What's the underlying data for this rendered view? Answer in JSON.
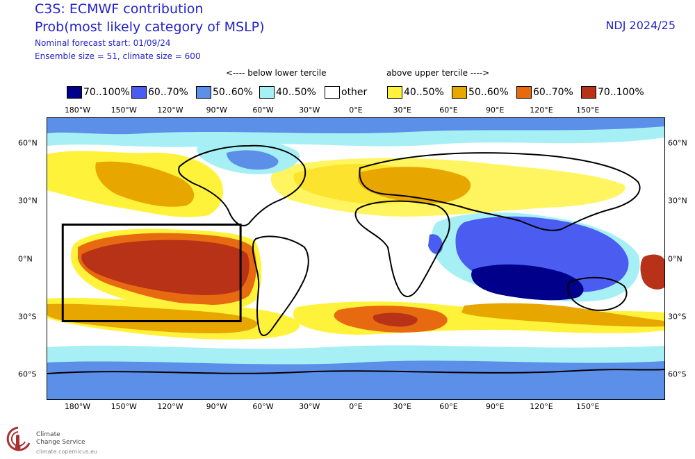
{
  "header": {
    "title": "C3S: ECMWF contribution",
    "subtitle": "Prob(most likely category of MSLP)",
    "forecast_start": "Nominal forecast start: 01/09/24",
    "ensemble": "Ensemble size = 51, climate size = 600",
    "period": "NDJ 2024/25"
  },
  "tercile_labels": {
    "below": "<---- below lower tercile",
    "above": "above upper tercile ---->"
  },
  "legend": [
    {
      "label": "70..100%",
      "color": "#00008b"
    },
    {
      "label": "60..70%",
      "color": "#4b5cf0"
    },
    {
      "label": "50..60%",
      "color": "#5c8fe8"
    },
    {
      "label": "40..50%",
      "color": "#a6f0f5"
    },
    {
      "label": "other",
      "color": "#ffffff"
    },
    {
      "label": "40..50%",
      "color": "#fff23a"
    },
    {
      "label": "50..60%",
      "color": "#e8a600"
    },
    {
      "label": "60..70%",
      "color": "#e86a10"
    },
    {
      "label": "70..100%",
      "color": "#b83218"
    }
  ],
  "lon_ticks": [
    "180°W",
    "150°W",
    "120°W",
    "90°W",
    "60°W",
    "30°W",
    "0°E",
    "30°E",
    "60°E",
    "90°E",
    "120°E",
    "150°E"
  ],
  "lat_ticks": [
    "60°N",
    "30°N",
    "0°N",
    "30°S",
    "60°S"
  ],
  "map": {
    "highlight_box": {
      "lon_range": [
        -190,
        -75
      ],
      "lat_range": [
        -32,
        18
      ]
    },
    "colors": {
      "ocean_other": "#ffffff",
      "land_line": "#000000",
      "box": "#000000"
    }
  },
  "logo": {
    "line1": "Climate",
    "line2": "Change Service",
    "url": "climate.copernicus.eu"
  }
}
